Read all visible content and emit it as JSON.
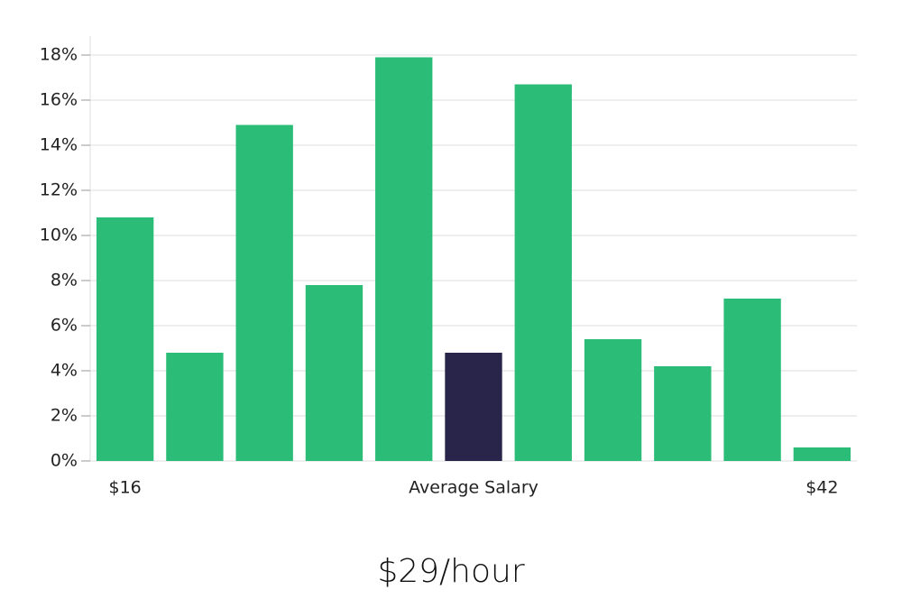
{
  "chart_data": {
    "type": "bar",
    "subtitle": "$29/hour",
    "categories": [
      "$16",
      null,
      null,
      null,
      null,
      "Average Salary",
      null,
      null,
      null,
      null,
      "$42"
    ],
    "values": [
      10.8,
      4.8,
      14.9,
      7.8,
      17.9,
      4.8,
      16.7,
      5.4,
      4.2,
      7.2,
      0.6
    ],
    "colors": [
      "#2bbd77",
      "#2bbd77",
      "#2bbd77",
      "#2bbd77",
      "#2bbd77",
      "#29254a",
      "#2bbd77",
      "#2bbd77",
      "#2bbd77",
      "#2bbd77",
      "#2bbd77"
    ],
    "ylim": [
      0,
      18.8
    ],
    "yticks": [
      {
        "value": 0,
        "label": "0%"
      },
      {
        "value": 2,
        "label": "2%"
      },
      {
        "value": 4,
        "label": "4%"
      },
      {
        "value": 6,
        "label": "6%"
      },
      {
        "value": 8,
        "label": "8%"
      },
      {
        "value": 10,
        "label": "10%"
      },
      {
        "value": 12,
        "label": "12%"
      },
      {
        "value": 14,
        "label": "14%"
      },
      {
        "value": 16,
        "label": "16%"
      },
      {
        "value": 18,
        "label": "18%"
      }
    ],
    "grid": true
  }
}
